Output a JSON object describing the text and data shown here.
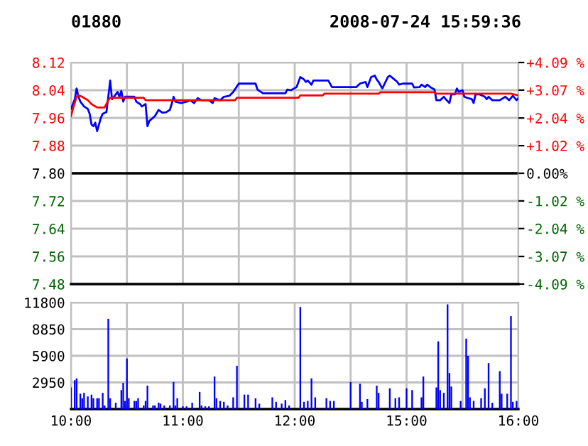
{
  "chart_data": [
    {
      "type": "line",
      "title": "01880",
      "subtitle": "2008-07-24 15:59:36",
      "ylim": [
        7.48,
        8.12
      ],
      "yticks": [
        8.12,
        8.04,
        7.96,
        7.88,
        {
          "value": 7.8,
          "label": "7.80"
        },
        7.72,
        7.64,
        7.56,
        7.48
      ],
      "y2lim": [
        -4.09,
        4.09
      ],
      "y2ticks": [
        {
          "value": 4.09,
          "label": "+4.09 %"
        },
        {
          "value": 3.07,
          "label": "+3.07 %"
        },
        {
          "value": 2.04,
          "label": "+2.04 %"
        },
        {
          "value": 1.02,
          "label": "+1.02 %"
        },
        {
          "value": 0,
          "label": "0.00%"
        },
        {
          "value": -1.02,
          "label": "-1.02 %"
        },
        {
          "value": -2.04,
          "label": "-2.04 %"
        },
        {
          "value": -3.07,
          "label": "-3.07 %"
        },
        {
          "value": -4.09,
          "label": "-4.09 %"
        }
      ],
      "categories": [
        null,
        null,
        null,
        null,
        null,
        null,
        null,
        null,
        null,
        null,
        null,
        null,
        null,
        null,
        null,
        null,
        null,
        null,
        null,
        null,
        null,
        null,
        null,
        null,
        null,
        null,
        null,
        null,
        null,
        null,
        null,
        null,
        null,
        null,
        null,
        null,
        null,
        null,
        null,
        null,
        null,
        null,
        null,
        null,
        null,
        null,
        null,
        null,
        null,
        null,
        null,
        null,
        null,
        null,
        null,
        null,
        null,
        null,
        null,
        null,
        null,
        null,
        null,
        null,
        null,
        null,
        null,
        null,
        null,
        null,
        null,
        null,
        null,
        null,
        null,
        null,
        null,
        null,
        null,
        null,
        null,
        null,
        null,
        null,
        null,
        null,
        null,
        null,
        null,
        null,
        null,
        null,
        null,
        null,
        null,
        null,
        null,
        null,
        null,
        null,
        null,
        null,
        null,
        null,
        null,
        null,
        null,
        null,
        null,
        null,
        null,
        null,
        null,
        null,
        null,
        null,
        null,
        null,
        null,
        null,
        null,
        null,
        null,
        null,
        null,
        null,
        null,
        null,
        null,
        null,
        null,
        null,
        null,
        null,
        null,
        null,
        null,
        null,
        null,
        null,
        null,
        null,
        null,
        null,
        null,
        null,
        null,
        null,
        null,
        null,
        null,
        null,
        null,
        null,
        null,
        null,
        null,
        null,
        null,
        null,
        null,
        null,
        null,
        null,
        null,
        null,
        null,
        null,
        null,
        null,
        null,
        null,
        null,
        null,
        null,
        null,
        null,
        null,
        null,
        null,
        null,
        null,
        null,
        null,
        null,
        null,
        null,
        null,
        null,
        null,
        null,
        null,
        null,
        null,
        null,
        null,
        null,
        null,
        null,
        null,
        null,
        null,
        null,
        null,
        null,
        null,
        null,
        null,
        null,
        null,
        null,
        null,
        null,
        null,
        null,
        null,
        null,
        null,
        null,
        null,
        null,
        null,
        null,
        null,
        null,
        null,
        null,
        null,
        null,
        null,
        null,
        null,
        null,
        null,
        null,
        null,
        null,
        null,
        null,
        null,
        null
      ],
      "grid": true,
      "ref_lines": [
        {
          "axis": "y",
          "value": 7.8,
          "color": "#000000"
        }
      ],
      "series": [
        {
          "color": "#0000ff",
          "values": [
            7.986,
            null,
            8.014,
            8.045,
            8.021,
            8.007,
            null,
            7.993,
            null,
            7.986,
            7.972,
            7.941,
            7.936,
            7.946,
            7.922,
            7.941,
            7.96,
            7.972,
            null,
            7.977,
            8.021,
            8.068,
            8.014,
            8.021,
            8.028,
            8.035,
            8.021,
            8.038,
            8.007,
            8.021,
            8.021,
            8.021,
            8.021,
            8.021,
            8.021,
            8.007,
            null,
            8.0,
            7.993,
            null,
            8.0,
            7.936,
            7.951,
            null,
            null,
            7.965,
            null,
            7.983,
            null,
            7.975,
            null,
            7.976,
            null,
            7.983,
            8.0,
            8.021,
            8.007,
            null,
            null,
            8.003,
            null,
            null,
            8.007,
            null,
            8.011,
            null,
            8.003,
            null,
            8.017,
            null,
            8.011,
            8.011,
            8.011,
            8.011,
            8.011,
            null,
            8.003,
            8.017,
            null,
            null,
            8.011,
            null,
            8.021,
            null,
            null,
            8.024,
            null,
            8.035,
            null,
            null,
            8.059,
            8.059,
            8.059,
            8.059,
            8.059,
            8.059,
            8.059,
            8.059,
            8.059,
            8.059,
            8.042,
            null,
            null,
            8.031,
            8.031,
            8.031,
            8.031,
            8.031,
            8.031,
            8.031,
            8.031,
            8.031,
            8.031,
            8.031,
            8.031,
            8.031,
            8.042,
            null,
            8.04,
            null,
            null,
            8.049,
            null,
            8.078,
            null,
            8.071,
            8.064,
            8.068,
            null,
            8.056,
            8.068,
            8.068,
            8.068,
            8.068,
            8.068,
            8.068,
            8.068,
            8.068,
            8.068,
            null,
            8.049,
            8.049,
            8.049,
            8.049,
            8.049,
            8.049,
            8.049,
            8.049,
            8.049,
            8.049,
            8.049,
            8.049,
            8.049,
            8.049,
            null,
            8.059,
            null,
            null,
            8.064,
            8.049,
            null,
            8.078,
            null,
            8.082,
            8.071,
            8.064,
            null,
            8.045,
            8.056,
            null,
            8.078,
            8.082,
            null,
            8.073,
            null,
            8.064,
            8.056,
            null,
            8.059,
            8.059,
            8.059,
            8.059,
            8.059,
            8.059,
            8.048,
            null,
            null,
            8.049,
            8.056,
            null,
            8.049,
            8.056,
            null,
            8.048,
            null,
            8.042,
            8.011,
            8.011,
            8.011,
            null,
            8.021,
            8.014,
            null,
            8.003,
            8.028,
            8.028,
            8.028,
            8.045,
            8.035,
            null,
            8.04,
            8.021,
            null,
            8.017,
            null,
            8.014,
            8.003,
            8.028,
            8.028,
            8.028,
            null,
            null,
            8.021,
            8.014,
            8.021,
            null,
            8.011,
            8.011,
            8.011,
            8.011,
            8.011,
            null,
            null,
            8.021,
            null,
            8.011,
            null,
            8.024,
            null,
            8.011,
            8.017
          ]
        },
        {
          "color": "#ff0000",
          "values": [
            7.965,
            7.986,
            null,
            8.021,
            8.025,
            null,
            8.021,
            null,
            null,
            8.011,
            null,
            8.0,
            null,
            null,
            7.99,
            7.99,
            7.99,
            7.99,
            7.99,
            null,
            8.011,
            8.018,
            8.018,
            8.018,
            8.018,
            8.018,
            8.018,
            8.018,
            8.018,
            8.018,
            8.018,
            8.018,
            8.018,
            8.018,
            8.018,
            8.018,
            8.018,
            8.018,
            8.018,
            8.018,
            8.011,
            8.011,
            8.011,
            8.011,
            8.011,
            8.011,
            8.011,
            8.011,
            8.011,
            8.011,
            8.011,
            8.011,
            8.011,
            8.011,
            8.011,
            8.011,
            8.011,
            8.011,
            8.011,
            8.011,
            8.011,
            8.011,
            8.011,
            8.011,
            8.011,
            8.011,
            8.011,
            8.011,
            8.011,
            8.011,
            8.011,
            8.011,
            8.011,
            8.011,
            8.011,
            8.011,
            8.011,
            8.011,
            8.011,
            8.011,
            8.011,
            8.011,
            8.011,
            8.011,
            8.011,
            8.011,
            8.011,
            8.011,
            8.011,
            8.018,
            8.018,
            8.018,
            8.018,
            8.018,
            8.018,
            8.018,
            8.018,
            8.018,
            8.018,
            8.018,
            8.018,
            8.018,
            8.018,
            8.018,
            8.018,
            8.018,
            8.018,
            8.018,
            8.018,
            8.018,
            8.018,
            8.018,
            8.018,
            8.018,
            8.018,
            8.018,
            8.018,
            8.018,
            8.018,
            8.018,
            8.018,
            8.018,
            8.018,
            8.025,
            8.025,
            8.025,
            8.025,
            8.025,
            8.025,
            8.025,
            8.025,
            8.025,
            8.025,
            8.025,
            8.025,
            8.025,
            8.03,
            8.03,
            8.03,
            8.03,
            8.03,
            8.03,
            8.03,
            8.03,
            8.03,
            8.03,
            8.03,
            8.03,
            8.03,
            8.03,
            8.03,
            8.03,
            8.03,
            8.03,
            8.03,
            8.03,
            8.03,
            8.03,
            8.03,
            8.03,
            8.03,
            8.03,
            8.03,
            8.03,
            8.03,
            8.03,
            8.034,
            8.034,
            8.034,
            8.034,
            8.034,
            8.034,
            8.034,
            8.034,
            8.034,
            8.034,
            8.034,
            8.034,
            8.034,
            8.034,
            8.034,
            8.034,
            8.034,
            8.034,
            8.034,
            8.034,
            8.034,
            8.034,
            8.034,
            8.034,
            8.034,
            8.034,
            8.034,
            8.034,
            8.034,
            8.034,
            8.03,
            8.03,
            8.03,
            8.03,
            8.03,
            8.03,
            8.03,
            8.03,
            8.03,
            8.03,
            8.03,
            8.03,
            8.03,
            8.03,
            8.03,
            8.03,
            8.03,
            8.03,
            8.03,
            8.03,
            8.03,
            8.03,
            8.03,
            8.03,
            8.03,
            8.03,
            8.03,
            8.03,
            8.03,
            8.03,
            8.03,
            8.03,
            8.03,
            8.03,
            8.03,
            8.03,
            8.03,
            8.03,
            8.03,
            8.03,
            8.03,
            null,
            null,
            null,
            8.025
          ]
        }
      ]
    },
    {
      "type": "bar",
      "ylim": [
        0,
        11800
      ],
      "yticks": [
        2950,
        5900,
        8850,
        11800
      ],
      "categories": [
        "10:00",
        null,
        null,
        null,
        null,
        null,
        null,
        null,
        null,
        null,
        null,
        null,
        null,
        null,
        null,
        null,
        null,
        null,
        null,
        null,
        null,
        null,
        null,
        null,
        null,
        null,
        null,
        null,
        null,
        null,
        null,
        null,
        null,
        null,
        null,
        null,
        null,
        null,
        null,
        null,
        null,
        null,
        null,
        null,
        null,
        null,
        null,
        null,
        null,
        null,
        null,
        null,
        null,
        null,
        null,
        null,
        null,
        null,
        null,
        null,
        "11:00",
        null,
        null,
        null,
        null,
        null,
        null,
        null,
        null,
        null,
        null,
        null,
        null,
        null,
        null,
        null,
        null,
        null,
        null,
        null,
        null,
        null,
        null,
        null,
        null,
        null,
        null,
        null,
        null,
        null,
        null,
        null,
        null,
        null,
        null,
        null,
        null,
        null,
        null,
        null,
        null,
        null,
        null,
        null,
        null,
        null,
        null,
        null,
        null,
        null,
        null,
        null,
        null,
        null,
        null,
        null,
        null,
        null,
        null,
        null,
        "12:00",
        null,
        null,
        null,
        null,
        null,
        null,
        null,
        null,
        null,
        null,
        null,
        null,
        null,
        null,
        null,
        null,
        null,
        null,
        null,
        null,
        null,
        null,
        null,
        null,
        null,
        null,
        null,
        null,
        null,
        null,
        null,
        null,
        null,
        null,
        null,
        null,
        null,
        null,
        null,
        null,
        null,
        null,
        null,
        null,
        null,
        null,
        null,
        null,
        null,
        null,
        null,
        null,
        null,
        null,
        null,
        null,
        null,
        null,
        null,
        "15:00",
        null,
        null,
        null,
        null,
        null,
        null,
        null,
        null,
        null,
        null,
        null,
        null,
        null,
        null,
        null,
        null,
        null,
        null,
        null,
        null,
        null,
        null,
        null,
        null,
        null,
        null,
        null,
        null,
        null,
        null,
        null,
        null,
        null,
        null,
        null,
        null,
        null,
        null,
        null,
        null,
        null,
        null,
        null,
        null,
        null,
        null,
        null,
        null,
        null,
        null,
        null,
        null,
        null,
        null,
        null,
        null,
        null,
        null,
        null,
        "16:00"
      ],
      "grid": true,
      "series": [
        {
          "color": "#0000ff",
          "values": [
            2400,
            null,
            3200,
            3400,
            null,
            1700,
            1200,
            1800,
            null,
            1400,
            null,
            1600,
            1200,
            null,
            1200,
            1200,
            null,
            1800,
            400,
            null,
            10000,
            1200,
            null,
            null,
            700,
            null,
            null,
            2100,
            2900,
            900,
            5600,
            1200,
            null,
            null,
            900,
            900,
            1200,
            null,
            null,
            400,
            900,
            2600,
            null,
            null,
            400,
            400,
            null,
            700,
            600,
            null,
            400,
            null,
            null,
            400,
            null,
            3000,
            400,
            1200,
            null,
            null,
            300,
            null,
            300,
            null,
            null,
            700,
            null,
            null,
            null,
            1900,
            400,
            null,
            300,
            null,
            300,
            null,
            null,
            3600,
            1200,
            null,
            900,
            null,
            800,
            null,
            400,
            null,
            null,
            1300,
            null,
            4800,
            null,
            null,
            null,
            1600,
            null,
            1600,
            null,
            null,
            null,
            1200,
            null,
            600,
            null,
            null,
            null,
            null,
            null,
            null,
            1300,
            null,
            800,
            null,
            null,
            600,
            null,
            1000,
            null,
            400,
            null,
            null,
            null,
            null,
            null,
            11300,
            null,
            800,
            null,
            900,
            null,
            3400,
            null,
            1300,
            null,
            null,
            null,
            null,
            null,
            1200,
            null,
            900,
            null,
            900,
            null,
            null,
            null,
            null,
            null,
            null,
            null,
            null,
            3000,
            null,
            null,
            null,
            null,
            2800,
            800,
            null,
            null,
            1100,
            null,
            null,
            null,
            null,
            2600,
            1800,
            null,
            null,
            null,
            null,
            null,
            2300,
            null,
            null,
            1200,
            null,
            1300,
            null,
            null,
            null,
            2300,
            null,
            null,
            2100,
            null,
            null,
            null,
            null,
            1300,
            3600,
            null,
            null,
            null,
            null,
            null,
            null,
            2400,
            7500,
            2100,
            null,
            1800,
            null,
            11600,
            4000,
            2500,
            null,
            null,
            null,
            null,
            900,
            null,
            null,
            7800,
            5900,
            1300,
            null,
            900,
            null,
            null,
            null,
            1200,
            null,
            2300,
            null,
            5100,
            null,
            700,
            null,
            null,
            null,
            4200,
            1700,
            null,
            null,
            1700,
            null,
            10300,
            800,
            null,
            900,
            null
          ]
        }
      ]
    }
  ]
}
